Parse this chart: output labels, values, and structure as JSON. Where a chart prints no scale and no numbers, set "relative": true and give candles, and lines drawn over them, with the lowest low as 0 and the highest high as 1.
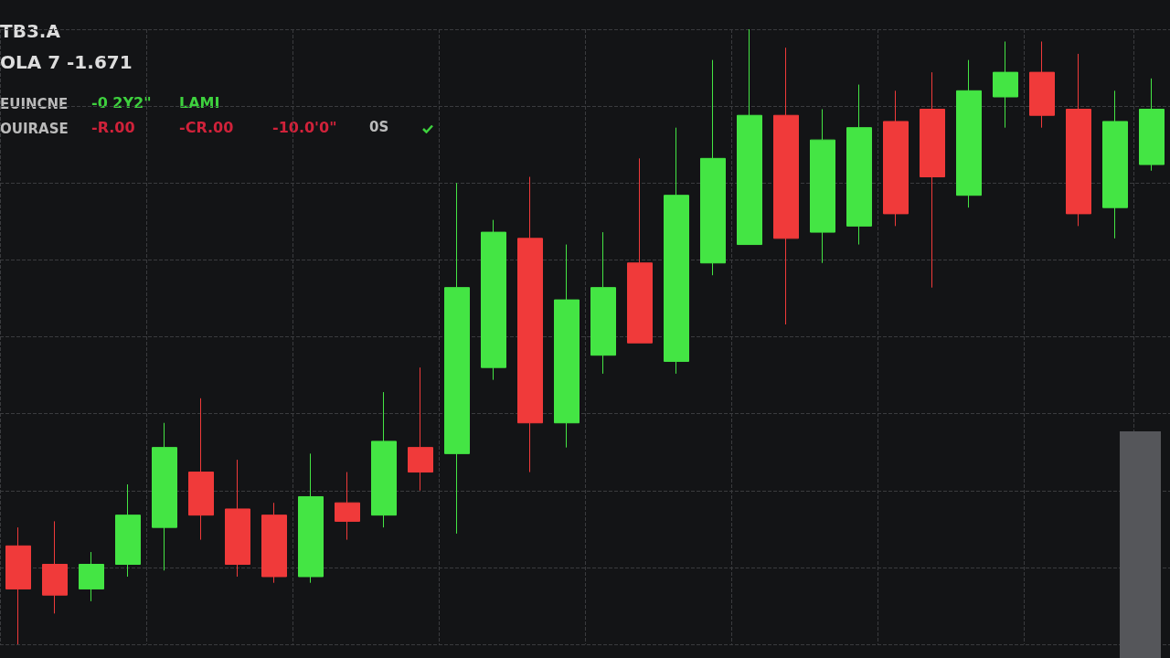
{
  "chart_data": {
    "type": "candlestick",
    "relative": true,
    "grid": true,
    "categories": [
      null,
      null,
      null,
      null,
      null,
      null,
      null,
      null,
      null,
      null,
      null,
      null,
      null,
      null,
      null,
      null,
      null,
      null,
      null,
      null,
      null,
      null,
      null,
      null,
      null,
      null,
      null,
      null,
      null,
      null,
      null,
      null
    ],
    "ohlc": [
      [
        0.16,
        0.19,
        0,
        0.09
      ],
      [
        0.13,
        0.2,
        0.05,
        0.08
      ],
      [
        0.09,
        0.15,
        0.07,
        0.13
      ],
      [
        0.13,
        0.26,
        0.11,
        0.21
      ],
      [
        0.19,
        0.36,
        0.12,
        0.32
      ],
      [
        0.28,
        0.4,
        0.17,
        0.21
      ],
      [
        0.22,
        0.3,
        0.11,
        0.13
      ],
      [
        0.21,
        0.23,
        0.1,
        0.11
      ],
      [
        0.11,
        0.31,
        0.1,
        0.24
      ],
      [
        0.23,
        0.28,
        0.17,
        0.2
      ],
      [
        0.21,
        0.41,
        0.19,
        0.33
      ],
      [
        0.32,
        0.45,
        0.25,
        0.28
      ],
      [
        0.31,
        0.75,
        0.18,
        0.58
      ],
      [
        0.45,
        0.69,
        0.43,
        0.67
      ],
      [
        0.66,
        0.76,
        0.28,
        0.36
      ],
      [
        0.36,
        0.65,
        0.32,
        0.56
      ],
      [
        0.47,
        0.67,
        0.44,
        0.58
      ],
      [
        0.62,
        0.79,
        0.49,
        0.49
      ],
      [
        0.46,
        0.84,
        0.44,
        0.73
      ],
      [
        0.62,
        0.95,
        0.6,
        0.79
      ],
      [
        0.65,
        1,
        0.65,
        0.86
      ],
      [
        0.86,
        0.97,
        0.52,
        0.66
      ],
      [
        0.67,
        0.87,
        0.62,
        0.82
      ],
      [
        0.68,
        0.91,
        0.65,
        0.84
      ],
      [
        0.85,
        0.9,
        0.68,
        0.7
      ],
      [
        0.87,
        0.93,
        0.58,
        0.76
      ],
      [
        0.73,
        0.95,
        0.71,
        0.9
      ],
      [
        0.89,
        0.98,
        0.84,
        0.93
      ],
      [
        0.93,
        0.98,
        0.84,
        0.86
      ],
      [
        0.87,
        0.96,
        0.68,
        0.7
      ],
      [
        0.71,
        0.9,
        0.66,
        0.85
      ],
      [
        0.78,
        0.92,
        0.77,
        0.87
      ]
    ],
    "colors": [
      "#f03a3a",
      "#f03a3a",
      "#44e544",
      "#44e544",
      "#44e544",
      "#f03a3a",
      "#f03a3a",
      "#f03a3a",
      "#44e544",
      "#f03a3a",
      "#44e544",
      "#f03a3a",
      "#44e544",
      "#44e544",
      "#f03a3a",
      "#44e544",
      "#44e544",
      "#f03a3a",
      "#44e544",
      "#44e544",
      "#44e544",
      "#f03a3a",
      "#44e544",
      "#44e544",
      "#f03a3a",
      "#f03a3a",
      "#44e544",
      "#44e544",
      "#f03a3a",
      "#f03a3a",
      "#44e544",
      "#44e544"
    ],
    "annotations": [
      "TB3.A",
      "OLA 7 -1.671",
      "EUINCNE",
      "-0 2Y2\"",
      "LAMI",
      "OUIRASE",
      "-R.00",
      "-CR.00",
      "-10.0'0\"",
      "0S"
    ]
  }
}
